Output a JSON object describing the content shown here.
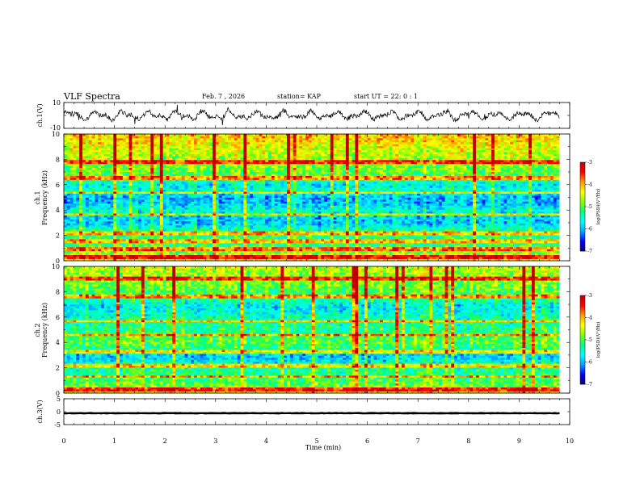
{
  "header": {
    "title": "VLF Spectra",
    "date": "Feb. 7 , 2026",
    "station": "station= KAP",
    "start": "start  UT =   22: 0  : 1"
  },
  "colors": {
    "waveform": "#000000",
    "panel_bg": "#ffffff",
    "colormap": [
      "#000070",
      "#0000ff",
      "#00a0ff",
      "#00ffff",
      "#00ff80",
      "#80ff00",
      "#ffff00",
      "#ffa000",
      "#ff0000",
      "#c00000"
    ]
  },
  "chart_data": [
    {
      "type": "line",
      "name": "ch1-waveform",
      "ylabel": "ch.1(V)",
      "ylim": [
        -10,
        10
      ],
      "y_ticks": [
        "10",
        "-10"
      ],
      "xlim": [
        0,
        10
      ],
      "series": [
        {
          "name": "ch.1",
          "x_range": [
            0,
            9.8
          ],
          "approx_amplitude": 4
        }
      ]
    },
    {
      "type": "heatmap",
      "name": "ch1-spectrogram",
      "ylabel": "ch.1\nFrequency (kHz)",
      "ylim": [
        0,
        10
      ],
      "y_ticks": [
        "0",
        "2",
        "4",
        "6",
        "8",
        "10"
      ],
      "xlim": [
        0,
        10
      ],
      "data_x_range": [
        0,
        9.8
      ],
      "colorbar": {
        "label": "log(PSD)(V²/Hz)",
        "range": [
          -7,
          -3
        ],
        "ticks": [
          "-3",
          "-4",
          "-5",
          "-6",
          "-7"
        ]
      },
      "frequency_profile_log_psd": [
        {
          "f": 0.0,
          "v": -4.4
        },
        {
          "f": 0.5,
          "v": -4.6
        },
        {
          "f": 1.0,
          "v": -5.0
        },
        {
          "f": 1.5,
          "v": -5.3
        },
        {
          "f": 2.0,
          "v": -5.2
        },
        {
          "f": 2.5,
          "v": -5.4
        },
        {
          "f": 3.0,
          "v": -5.9
        },
        {
          "f": 3.5,
          "v": -5.8
        },
        {
          "f": 4.0,
          "v": -5.5
        },
        {
          "f": 4.5,
          "v": -5.9
        },
        {
          "f": 5.0,
          "v": -6.0
        },
        {
          "f": 5.5,
          "v": -5.4
        },
        {
          "f": 6.0,
          "v": -5.7
        },
        {
          "f": 6.5,
          "v": -5.1
        },
        {
          "f": 7.0,
          "v": -4.9
        },
        {
          "f": 7.5,
          "v": -4.8
        },
        {
          "f": 8.0,
          "v": -4.6
        },
        {
          "f": 8.5,
          "v": -4.5
        },
        {
          "f": 9.0,
          "v": -4.4
        },
        {
          "f": 9.5,
          "v": -4.2
        },
        {
          "f": 10.0,
          "v": -4.1
        }
      ],
      "narrowband_lines_khz": [
        0.3,
        0.9,
        1.6,
        2.2,
        3.7,
        5.4,
        6.6,
        7.8
      ]
    },
    {
      "type": "heatmap",
      "name": "ch2-spectrogram",
      "ylabel": "ch.2\nFrequency (kHz)",
      "ylim": [
        0,
        10
      ],
      "y_ticks": [
        "0",
        "2",
        "4",
        "6",
        "8",
        "10"
      ],
      "xlim": [
        0,
        10
      ],
      "data_x_range": [
        0,
        9.8
      ],
      "colorbar": {
        "label": "log(PSD)(V²/Hz)",
        "range": [
          -7,
          -3
        ],
        "ticks": [
          "-3",
          "-4",
          "-5",
          "-6",
          "-7"
        ]
      },
      "frequency_profile_log_psd": [
        {
          "f": 0.0,
          "v": -4.3
        },
        {
          "f": 0.5,
          "v": -4.8
        },
        {
          "f": 1.0,
          "v": -5.0
        },
        {
          "f": 1.5,
          "v": -5.2
        },
        {
          "f": 2.0,
          "v": -5.3
        },
        {
          "f": 2.5,
          "v": -5.6
        },
        {
          "f": 3.0,
          "v": -5.9
        },
        {
          "f": 3.5,
          "v": -5.2
        },
        {
          "f": 4.0,
          "v": -4.9
        },
        {
          "f": 4.5,
          "v": -5.0
        },
        {
          "f": 5.0,
          "v": -5.2
        },
        {
          "f": 5.5,
          "v": -5.3
        },
        {
          "f": 6.0,
          "v": -5.4
        },
        {
          "f": 6.5,
          "v": -5.6
        },
        {
          "f": 7.0,
          "v": -5.7
        },
        {
          "f": 7.5,
          "v": -5.1
        },
        {
          "f": 8.0,
          "v": -5.0
        },
        {
          "f": 8.5,
          "v": -4.8
        },
        {
          "f": 9.0,
          "v": -4.7
        },
        {
          "f": 9.5,
          "v": -4.6
        },
        {
          "f": 10.0,
          "v": -4.5
        }
      ],
      "narrowband_lines_khz": [
        0.3,
        1.3,
        2.2,
        3.3,
        4.6,
        5.7,
        7.7,
        9.1
      ]
    },
    {
      "type": "line",
      "name": "ch3-waveform",
      "ylabel": "ch.3(V)",
      "ylim": [
        -5,
        5
      ],
      "y_ticks": [
        "5",
        "0",
        "-5"
      ],
      "xlim": [
        0,
        10
      ],
      "series": [
        {
          "name": "ch.3",
          "x_range": [
            0,
            9.8
          ],
          "approx_center": -0.6,
          "approx_band": [
            -1.0,
            -0.2
          ]
        }
      ]
    }
  ],
  "x_axis": {
    "label": "Time  (min)",
    "ticks": [
      "0",
      "1",
      "2",
      "3",
      "4",
      "5",
      "6",
      "7",
      "8",
      "9",
      "10"
    ]
  }
}
